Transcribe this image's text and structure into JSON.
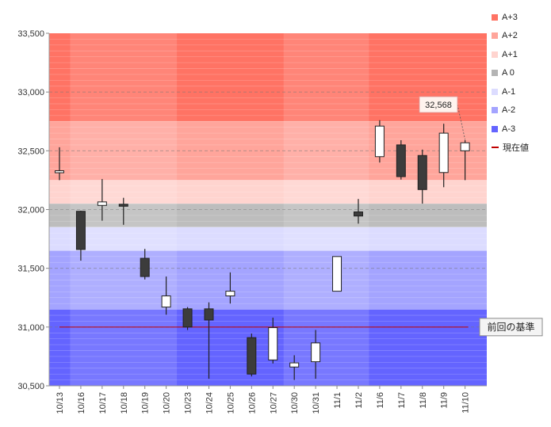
{
  "chart_data": {
    "type": "candlestick",
    "ylim": [
      30500,
      33500
    ],
    "yticks": [
      30500,
      31000,
      31500,
      32000,
      32500,
      33000,
      33500
    ],
    "ytick_labels": [
      "30,500",
      "31,000",
      "31,500",
      "32,000",
      "32,500",
      "33,000",
      "33,500"
    ],
    "categories": [
      "10/13",
      "10/16",
      "10/17",
      "10/18",
      "10/19",
      "10/20",
      "10/23",
      "10/24",
      "10/25",
      "10/26",
      "10/27",
      "10/30",
      "10/31",
      "11/1",
      "11/2",
      "11/6",
      "11/7",
      "11/8",
      "11/9",
      "11/10"
    ],
    "candles": [
      {
        "open": 32315,
        "close": 32330,
        "high": 32530,
        "low": 32250
      },
      {
        "open": 31985,
        "close": 31660,
        "high": 31990,
        "low": 31565
      },
      {
        "open": 32035,
        "close": 32065,
        "high": 32260,
        "low": 31905
      },
      {
        "open": 32045,
        "close": 32030,
        "high": 32100,
        "low": 31870
      },
      {
        "open": 31585,
        "close": 31430,
        "high": 31665,
        "low": 31405
      },
      {
        "open": 31170,
        "close": 31265,
        "high": 31430,
        "low": 31105
      },
      {
        "open": 31155,
        "close": 31000,
        "high": 31170,
        "low": 30975
      },
      {
        "open": 31155,
        "close": 31060,
        "high": 31210,
        "low": 30560
      },
      {
        "open": 31265,
        "close": 31305,
        "high": 31465,
        "low": 31200
      },
      {
        "open": 30910,
        "close": 30600,
        "high": 30945,
        "low": 30580
      },
      {
        "open": 30720,
        "close": 30995,
        "high": 31080,
        "low": 30690
      },
      {
        "open": 30660,
        "close": 30695,
        "high": 30760,
        "low": 30550
      },
      {
        "open": 30705,
        "close": 30865,
        "high": 30975,
        "low": 30560
      },
      {
        "open": 31305,
        "close": 31600,
        "high": 31600,
        "low": 31305
      },
      {
        "open": 31980,
        "close": 31945,
        "high": 32090,
        "low": 31880
      },
      {
        "open": 32450,
        "close": 32710,
        "high": 32760,
        "low": 32400
      },
      {
        "open": 32550,
        "close": 32280,
        "high": 32590,
        "low": 32255
      },
      {
        "open": 32460,
        "close": 32170,
        "high": 32510,
        "low": 32050
      },
      {
        "open": 32315,
        "close": 32650,
        "high": 32730,
        "low": 32190
      },
      {
        "open": 32500,
        "close": 32568,
        "high": 32590,
        "low": 32250
      }
    ],
    "bands": [
      {
        "name": "A+3",
        "from": 32750,
        "to": 33500,
        "color": "#ff7364"
      },
      {
        "name": "A+2",
        "from": 32250,
        "to": 32750,
        "color": "#ffa59b"
      },
      {
        "name": "A+1",
        "from": 32050,
        "to": 32250,
        "color": "#ffd4cf"
      },
      {
        "name": "A 0",
        "from": 31850,
        "to": 32050,
        "color": "#bdbdbd"
      },
      {
        "name": "A-1",
        "from": 31650,
        "to": 31850,
        "color": "#dcdcff"
      },
      {
        "name": "A-2",
        "from": 31150,
        "to": 31650,
        "color": "#a4a4ff"
      },
      {
        "name": "A-3",
        "from": 30500,
        "to": 31150,
        "color": "#6464ff"
      }
    ],
    "reference_line": {
      "value": 31000,
      "label": "前回の基準",
      "color": "#c00000"
    },
    "current_value": {
      "value": 32568,
      "label": "32,568"
    }
  },
  "legend": {
    "items": [
      {
        "label": "A+3",
        "color": "#ff7364"
      },
      {
        "label": "A+2",
        "color": "#ffa59b"
      },
      {
        "label": "A+1",
        "color": "#ffd4cf"
      },
      {
        "label": "A 0",
        "color": "#b4b4b4"
      },
      {
        "label": "A-1",
        "color": "#dcdcff"
      },
      {
        "label": "A-2",
        "color": "#a4a4ff"
      },
      {
        "label": "A-3",
        "color": "#6464ff"
      }
    ],
    "current_value_label": "現在値",
    "current_value_color": "#c00000"
  }
}
